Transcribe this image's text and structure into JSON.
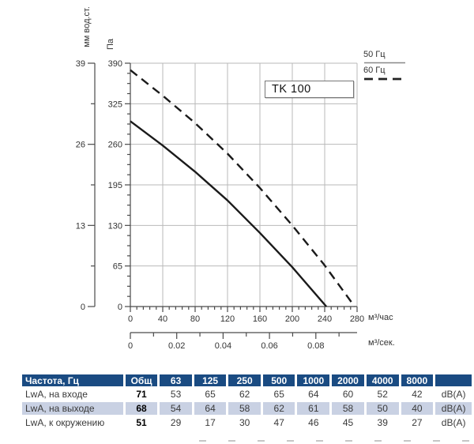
{
  "chart": {
    "model_label": "TK 100",
    "legend": [
      {
        "label": "50 Гц",
        "style": "solid"
      },
      {
        "label": "60 Гц",
        "style": "dashed"
      }
    ],
    "axes": {
      "pa_label": "Па",
      "mm_label": "мм вод.ст.",
      "pa_ticks": [
        390,
        325,
        260,
        195,
        130,
        65,
        0
      ],
      "mm_ticks": [
        39,
        26,
        13,
        0
      ],
      "x_hour_ticks": [
        0,
        40,
        80,
        120,
        160,
        200,
        240,
        280
      ],
      "x_hour_unit": "м³/час",
      "x_sec_ticks": [
        "0",
        "0.02",
        "0.04",
        "0.06",
        "0.08"
      ],
      "x_sec_unit": "м³/сек."
    }
  },
  "chart_data": {
    "type": "line",
    "title": "TK 100",
    "xlabel": "м³/час",
    "x2label": "м³/сек.",
    "ylabel": "Па",
    "y2label": "мм вод.ст.",
    "xlim": [
      0,
      280
    ],
    "ylim": [
      0,
      390
    ],
    "grid": true,
    "legend_position": "top-right",
    "series": [
      {
        "name": "50 Гц",
        "style": "solid",
        "x": [
          0,
          40,
          80,
          120,
          160,
          200,
          242
        ],
        "y": [
          297,
          258,
          216,
          170,
          118,
          63,
          0
        ]
      },
      {
        "name": "60 Гц",
        "style": "dashed",
        "x": [
          0,
          40,
          80,
          120,
          160,
          200,
          240,
          277
        ],
        "y": [
          379,
          338,
          294,
          245,
          190,
          130,
          66,
          0
        ]
      }
    ]
  },
  "table": {
    "header": [
      "Частота, Гц",
      "Общ",
      "63",
      "125",
      "250",
      "500",
      "1000",
      "2000",
      "4000",
      "8000",
      ""
    ],
    "rows": [
      [
        "LwA, на входе",
        "71",
        "53",
        "65",
        "62",
        "65",
        "64",
        "60",
        "52",
        "42",
        "dB(A)"
      ],
      [
        "LwA, на выходе",
        "68",
        "54",
        "64",
        "58",
        "62",
        "61",
        "58",
        "50",
        "40",
        "dB(A)"
      ],
      [
        "LwA, к окружению",
        "51",
        "29",
        "17",
        "30",
        "47",
        "46",
        "45",
        "39",
        "27",
        "dB(A)"
      ]
    ]
  },
  "colors": {
    "header_bg": "#1a4b82",
    "row_alt": "#c9d1e3",
    "grid": "#b9b9b9",
    "axis": "#4a4a4a",
    "curve": "#1a1a1a"
  }
}
